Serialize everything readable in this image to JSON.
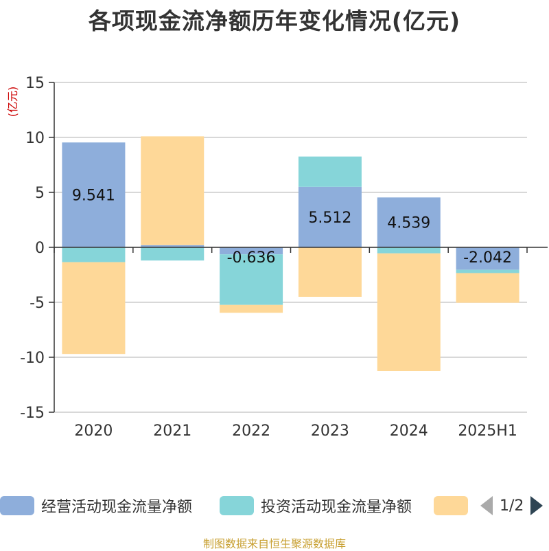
{
  "chart_data": {
    "type": "bar",
    "stacked": true,
    "title": "各项现金流净额历年变化情况(亿元)",
    "ylabel": "(亿元)",
    "categories": [
      "2020",
      "2021",
      "2022",
      "2023",
      "2024",
      "2025H1"
    ],
    "ylim": [
      -15,
      15
    ],
    "yticks": [
      15,
      10,
      5,
      0,
      -5,
      -10,
      -15
    ],
    "grid": true,
    "series": [
      {
        "name": "经营活动现金流量净额",
        "color": "#8eaedb",
        "values": [
          9.541,
          0.2,
          -0.636,
          5.512,
          4.539,
          -2.042
        ],
        "labels": [
          "9.541",
          "",
          "-0.636",
          "5.512",
          "4.539",
          "-2.042"
        ]
      },
      {
        "name": "投资活动现金流量净额",
        "color": "#86d5d9",
        "values": [
          -1.35,
          -1.2,
          -4.6,
          2.75,
          -0.55,
          -0.3
        ]
      },
      {
        "name": "",
        "color": "#fed898",
        "values": [
          -8.35,
          9.9,
          -0.72,
          -4.5,
          -10.7,
          -2.7
        ]
      }
    ],
    "legend": {
      "position": "bottom",
      "page": "1/2"
    }
  },
  "source": "制图数据来自恒生聚源数据库"
}
